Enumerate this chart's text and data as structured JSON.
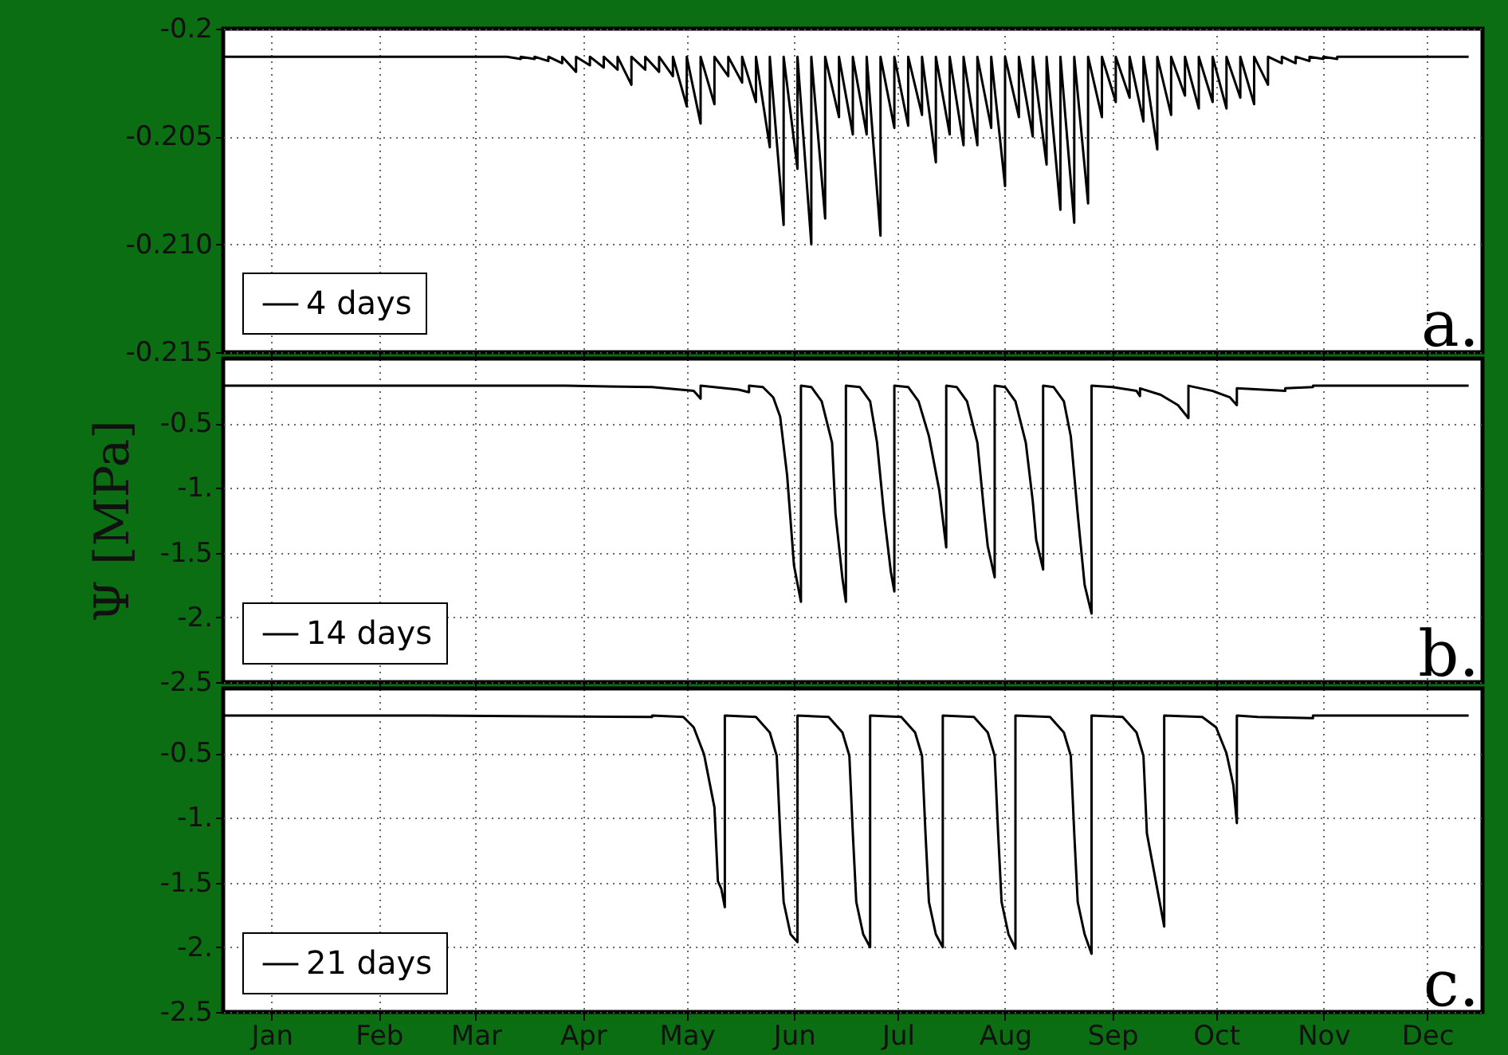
{
  "chart_data": [
    {
      "type": "line",
      "xlim": [
        "--01-01",
        "--12-31"
      ],
      "ylim": [
        -0.215,
        -0.2
      ],
      "yticks": [
        -0.2,
        -0.205,
        {
          "value": -0.21,
          "label": "-0.210"
        },
        -0.215
      ],
      "xticks": [
        {
          "value": "--01-15",
          "label": null
        },
        {
          "value": "--02-15",
          "label": null
        },
        {
          "value": "--03-15",
          "label": null
        },
        {
          "value": "--04-15",
          "label": null
        },
        {
          "value": "--05-15",
          "label": null
        },
        {
          "value": "--06-15",
          "label": null
        },
        {
          "value": "--07-15",
          "label": null
        },
        {
          "value": "--08-15",
          "label": null
        },
        {
          "value": "--09-15",
          "label": null
        },
        {
          "value": "--10-15",
          "label": null
        },
        {
          "value": "--11-15",
          "label": null
        },
        {
          "value": "--12-15",
          "label": null
        }
      ],
      "grid": true,
      "legend": "bottom left",
      "tick_labels": "y",
      "line_style": "solid",
      "annotations": [
        "a."
      ],
      "series": [
        {
          "name": "4 days",
          "color": "#000000",
          "x": [
            "--01-01",
            "--03-24",
            "--03-28",
            "--03-28",
            "--04-01",
            "--04-01",
            "--04-05",
            "--04-05",
            "--04-09",
            "--04-09",
            "--04-13",
            "--04-13",
            "--04-17",
            "--04-17",
            "--04-21",
            "--04-21",
            "--04-25",
            "--04-25",
            "--04-29",
            "--04-29",
            "--05-03",
            "--05-03",
            "--05-07",
            "--05-07",
            "--05-11",
            "--05-11",
            "--05-15",
            "--05-15",
            "--05-19",
            "--05-19",
            "--05-23",
            "--05-23",
            "--05-27",
            "--05-27",
            "--05-31",
            "--05-31",
            "--06-04",
            "--06-04",
            "--06-08",
            "--06-08",
            "--06-12",
            "--06-12",
            "--06-16",
            "--06-16",
            "--06-20",
            "--06-20",
            "--06-24",
            "--06-24",
            "--06-28",
            "--06-28",
            "--07-02",
            "--07-02",
            "--07-06",
            "--07-06",
            "--07-10",
            "--07-10",
            "--07-14",
            "--07-14",
            "--07-18",
            "--07-18",
            "--07-22",
            "--07-22",
            "--07-26",
            "--07-26",
            "--07-30",
            "--07-30",
            "--08-03",
            "--08-03",
            "--08-07",
            "--08-07",
            "--08-11",
            "--08-11",
            "--08-15",
            "--08-15",
            "--08-19",
            "--08-19",
            "--08-23",
            "--08-23",
            "--08-27",
            "--08-27",
            "--08-31",
            "--08-31",
            "--09-04",
            "--09-04",
            "--09-08",
            "--09-08",
            "--09-12",
            "--09-12",
            "--09-16",
            "--09-16",
            "--09-20",
            "--09-20",
            "--09-24",
            "--09-24",
            "--09-28",
            "--09-28",
            "--10-02",
            "--10-02",
            "--10-06",
            "--10-06",
            "--10-10",
            "--10-10",
            "--10-14",
            "--10-14",
            "--10-18",
            "--10-18",
            "--10-22",
            "--10-22",
            "--10-26",
            "--10-26",
            "--10-30",
            "--10-30",
            "--11-03",
            "--11-03",
            "--11-07",
            "--11-07",
            "--11-11",
            "--11-11",
            "--11-15",
            "--11-15",
            "--11-19",
            "--11-19",
            "--12-27"
          ],
          "values": [
            -0.2013,
            -0.2013,
            -0.2014,
            -0.2013,
            -0.2014,
            -0.2013,
            -0.2015,
            -0.2013,
            -0.2016,
            -0.2013,
            -0.202,
            -0.2013,
            -0.2017,
            -0.2013,
            -0.2018,
            -0.2013,
            -0.2019,
            -0.2013,
            -0.2026,
            -0.2013,
            -0.2019,
            -0.2013,
            -0.202,
            -0.2013,
            -0.2022,
            -0.2013,
            -0.2036,
            -0.2013,
            -0.2044,
            -0.2013,
            -0.2035,
            -0.2013,
            -0.2022,
            -0.2013,
            -0.2025,
            -0.2013,
            -0.2034,
            -0.2013,
            -0.2055,
            -0.2013,
            -0.2091,
            -0.2013,
            -0.2065,
            -0.2013,
            -0.21,
            -0.2013,
            -0.2088,
            -0.2013,
            -0.2041,
            -0.2013,
            -0.2049,
            -0.2013,
            -0.2049,
            -0.2013,
            -0.2096,
            -0.2013,
            -0.2046,
            -0.2013,
            -0.2045,
            -0.2013,
            -0.204,
            -0.2013,
            -0.2062,
            -0.2013,
            -0.2049,
            -0.2013,
            -0.2054,
            -0.2013,
            -0.2054,
            -0.2013,
            -0.2046,
            -0.2013,
            -0.2073,
            -0.2013,
            -0.2041,
            -0.2013,
            -0.205,
            -0.2013,
            -0.2063,
            -0.2013,
            -0.2084,
            -0.2013,
            -0.209,
            -0.2013,
            -0.2081,
            -0.2013,
            -0.2041,
            -0.2013,
            -0.2034,
            -0.2013,
            -0.2032,
            -0.2013,
            -0.2043,
            -0.2013,
            -0.2056,
            -0.2013,
            -0.204,
            -0.2013,
            -0.2031,
            -0.2013,
            -0.2037,
            -0.2013,
            -0.2034,
            -0.2013,
            -0.2037,
            -0.2013,
            -0.2032,
            -0.2013,
            -0.2035,
            -0.2013,
            -0.2026,
            -0.2013,
            -0.2016,
            -0.2013,
            -0.2016,
            -0.2013,
            -0.2015,
            -0.2013,
            -0.2014,
            -0.2013,
            -0.2014,
            -0.2013,
            -0.2013
          ]
        }
      ]
    },
    {
      "type": "line",
      "xlim": [
        "--01-01",
        "--12-31"
      ],
      "ylim": [
        -2.5,
        0
      ],
      "yticks": [
        -0.5,
        {
          "value": -1,
          "label": "-1."
        },
        -1.5,
        {
          "value": -2,
          "label": "-2."
        },
        -2.5
      ],
      "xticks": [
        {
          "value": "--01-15",
          "label": null
        },
        {
          "value": "--02-15",
          "label": null
        },
        {
          "value": "--03-15",
          "label": null
        },
        {
          "value": "--04-15",
          "label": null
        },
        {
          "value": "--05-15",
          "label": null
        },
        {
          "value": "--06-15",
          "label": null
        },
        {
          "value": "--07-15",
          "label": null
        },
        {
          "value": "--08-15",
          "label": null
        },
        {
          "value": "--09-15",
          "label": null
        },
        {
          "value": "--10-15",
          "label": null
        },
        {
          "value": "--11-15",
          "label": null
        },
        {
          "value": "--12-15",
          "label": null
        }
      ],
      "ylabel": "Ψ [MPa]",
      "grid": true,
      "legend": "bottom left",
      "tick_labels": "y",
      "line_style": "solid",
      "annotations": [
        "b."
      ],
      "series": [
        {
          "name": "14 days",
          "color": "#000000",
          "x": [
            "--01-01",
            "--04-10",
            "--05-05",
            "--05-17",
            "--05-19",
            "--05-19",
            "--05-30",
            "--06-02",
            "--06-02",
            "--06-06",
            "--06-09",
            "--06-11",
            "--06-13",
            "--06-15",
            "--06-17",
            "--06-17",
            "--06-20",
            "--06-23",
            "--06-26",
            "--06-27",
            "--06-29",
            "--06-30",
            "--06-30",
            "--07-04",
            "--07-07",
            "--07-09",
            "--07-11",
            "--07-13",
            "--07-14",
            "--07-14",
            "--07-18",
            "--07-21",
            "--07-24",
            "--07-27",
            "--07-29",
            "--07-29",
            "--08-01",
            "--08-04",
            "--08-07",
            "--08-09",
            "--08-10",
            "--08-12",
            "--08-12",
            "--08-15",
            "--08-18",
            "--08-21",
            "--08-23",
            "--08-24",
            "--08-26",
            "--08-26",
            "--08-29",
            "--09-01",
            "--09-03",
            "--09-05",
            "--09-07",
            "--09-09",
            "--09-09",
            "--09-15",
            "--09-22",
            "--09-23",
            "--09-23",
            "--09-29",
            "--10-04",
            "--10-07",
            "--10-07",
            "--10-14",
            "--10-19",
            "--10-21",
            "--10-21",
            "--11-04",
            "--11-04",
            "--11-12",
            "--11-12",
            "--12-27"
          ],
          "values": [
            -0.21,
            -0.21,
            -0.22,
            -0.25,
            -0.31,
            -0.21,
            -0.24,
            -0.26,
            -0.21,
            -0.22,
            -0.3,
            -0.45,
            -0.9,
            -1.6,
            -1.88,
            -0.21,
            -0.22,
            -0.33,
            -0.65,
            -1.2,
            -1.7,
            -1.88,
            -0.21,
            -0.22,
            -0.33,
            -0.65,
            -1.2,
            -1.65,
            -1.8,
            -0.21,
            -0.22,
            -0.33,
            -0.6,
            -1.02,
            -1.46,
            -0.21,
            -0.22,
            -0.33,
            -0.65,
            -1.2,
            -1.45,
            -1.69,
            -0.21,
            -0.22,
            -0.33,
            -0.65,
            -1.1,
            -1.4,
            -1.63,
            -0.21,
            -0.22,
            -0.33,
            -0.6,
            -1.2,
            -1.75,
            -1.97,
            -0.21,
            -0.22,
            -0.25,
            -0.29,
            -0.23,
            -0.28,
            -0.36,
            -0.46,
            -0.21,
            -0.25,
            -0.3,
            -0.36,
            -0.23,
            -0.25,
            -0.23,
            -0.22,
            -0.21,
            -0.21
          ]
        }
      ]
    },
    {
      "type": "line",
      "xlim": [
        "--01-01",
        "--12-31"
      ],
      "ylim": [
        -2.5,
        0
      ],
      "yticks": [
        -0.5,
        {
          "value": -1,
          "label": "-1."
        },
        -1.5,
        {
          "value": -2,
          "label": "-2."
        },
        -2.5
      ],
      "xticks": [
        {
          "value": "--01-15",
          "label": "Jan"
        },
        {
          "value": "--02-15",
          "label": "Feb"
        },
        {
          "value": "--03-15",
          "label": "Mar"
        },
        {
          "value": "--04-15",
          "label": "Apr"
        },
        {
          "value": "--05-15",
          "label": "May"
        },
        {
          "value": "--06-15",
          "label": "Jun"
        },
        {
          "value": "--07-15",
          "label": "Jul"
        },
        {
          "value": "--08-15",
          "label": "Aug"
        },
        {
          "value": "--09-15",
          "label": "Sep"
        },
        {
          "value": "--10-15",
          "label": "Oct"
        },
        {
          "value": "--11-15",
          "label": "Nov"
        },
        {
          "value": "--12-15",
          "label": "Dec"
        }
      ],
      "grid": true,
      "legend": "bottom left",
      "line_style": "solid",
      "annotations": [
        "c."
      ],
      "series": [
        {
          "name": "21 days",
          "color": "#000000",
          "x": [
            "--01-01",
            "--03-01",
            "--05-05",
            "--05-05",
            "--05-14",
            "--05-17",
            "--05-20",
            "--05-23",
            "--05-24",
            "--05-25",
            "--05-26",
            "--05-26",
            "--06-04",
            "--06-08",
            "--06-10",
            "--06-11",
            "--06-12",
            "--06-14",
            "--06-16",
            "--06-16",
            "--06-25",
            "--06-29",
            "--07-01",
            "--07-02",
            "--07-03",
            "--07-05",
            "--07-07",
            "--07-07",
            "--07-16",
            "--07-20",
            "--07-22",
            "--07-23",
            "--07-24",
            "--07-26",
            "--07-28",
            "--07-28",
            "--08-06",
            "--08-10",
            "--08-12",
            "--08-13",
            "--08-14",
            "--08-16",
            "--08-18",
            "--08-18",
            "--08-28",
            "--09-01",
            "--09-03",
            "--09-04",
            "--09-05",
            "--09-07",
            "--09-09",
            "--09-09",
            "--09-18",
            "--09-22",
            "--09-24",
            "--09-25",
            "--09-28",
            "--09-30",
            "--09-30",
            "--10-11",
            "--10-15",
            "--10-18",
            "--10-20",
            "--10-21",
            "--10-21",
            "--10-27",
            "--11-12",
            "--11-12",
            "--12-27"
          ],
          "values": [
            -0.21,
            -0.21,
            -0.22,
            -0.21,
            -0.22,
            -0.3,
            -0.51,
            -0.92,
            -1.49,
            -1.55,
            -1.69,
            -0.21,
            -0.22,
            -0.34,
            -0.52,
            -1.12,
            -1.65,
            -1.9,
            -1.96,
            -0.21,
            -0.22,
            -0.34,
            -0.52,
            -1.12,
            -1.65,
            -1.9,
            -2,
            -0.21,
            -0.22,
            -0.34,
            -0.52,
            -1.12,
            -1.65,
            -1.9,
            -2,
            -0.21,
            -0.22,
            -0.34,
            -0.52,
            -1.12,
            -1.65,
            -1.9,
            -2.01,
            -0.21,
            -0.22,
            -0.34,
            -0.52,
            -1.12,
            -1.65,
            -1.9,
            -2.05,
            -0.21,
            -0.22,
            -0.34,
            -0.52,
            -1.12,
            -1.55,
            -1.84,
            -0.21,
            -0.22,
            -0.3,
            -0.5,
            -0.75,
            -1.04,
            -0.21,
            -0.22,
            -0.23,
            -0.21,
            -0.21
          ]
        }
      ]
    }
  ]
}
